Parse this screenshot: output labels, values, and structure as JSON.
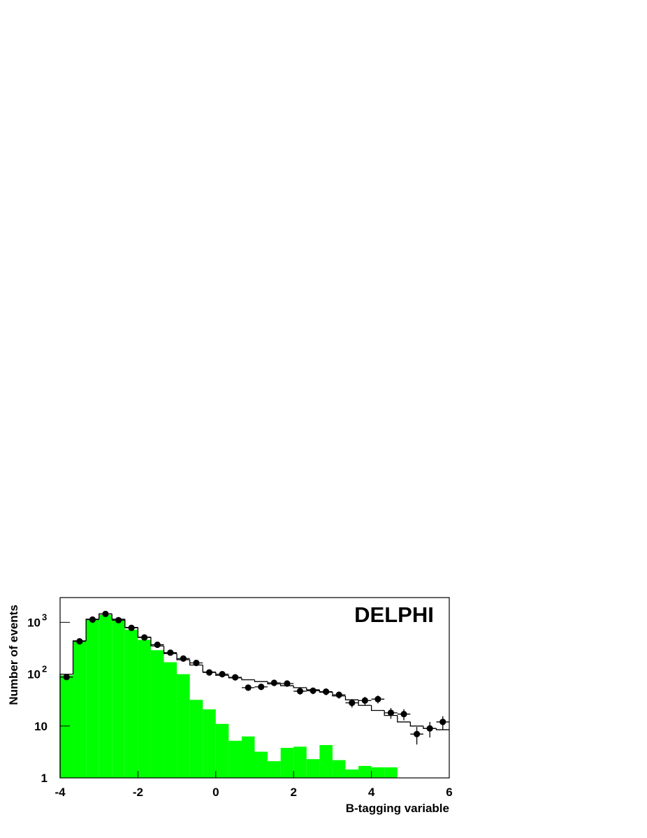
{
  "chart_data": {
    "type": "histogram",
    "annotation": "DELPHI",
    "xlabel": "B-tagging variable",
    "ylabel": "Number of events",
    "bins": [
      -4,
      -3.667,
      -3.333,
      -3,
      -2.667,
      -2.333,
      -2,
      -1.667,
      -1.333,
      -1,
      -0.667,
      -0.333,
      0,
      0.333,
      0.667,
      1,
      1.333,
      1.667,
      2,
      2.333,
      2.667,
      3,
      3.333,
      3.667,
      4,
      4.333,
      4.667,
      5,
      5.333,
      5.667,
      6
    ],
    "series": [
      {
        "color": "#00ff00",
        "style": "filled",
        "values": [
          95,
          440,
          1130,
          1380,
          1100,
          720,
          460,
          290,
          170,
          100,
          32,
          21,
          11,
          5.2,
          6.3,
          3.2,
          2.1,
          3.8,
          4.0,
          2.3,
          4.3,
          2.2,
          1.45,
          1.7,
          1.6,
          1.6,
          null,
          null,
          null,
          null
        ]
      },
      {
        "color": "#000000",
        "style": "step",
        "values": [
          100,
          440,
          1150,
          1450,
          1150,
          800,
          520,
          350,
          250,
          190,
          150,
          110,
          95,
          85,
          78,
          72,
          65,
          60,
          55,
          50,
          45,
          38,
          32,
          25,
          20,
          16,
          12,
          10,
          9,
          8.5
        ]
      }
    ],
    "data_points": {
      "color": "#000000",
      "values": [
        88,
        430,
        1130,
        1450,
        1100,
        780,
        510,
        370,
        260,
        200,
        165,
        108,
        100,
        87,
        55,
        57,
        68,
        66,
        47,
        48,
        46,
        40,
        28,
        31,
        33,
        18,
        17,
        7,
        9,
        12
      ],
      "errors": [
        9.4,
        21,
        34,
        38,
        33,
        28,
        23,
        19,
        16,
        14,
        13,
        10,
        10,
        9.3,
        7.4,
        7.5,
        8.2,
        8.1,
        6.9,
        6.9,
        6.8,
        6.3,
        5.3,
        5.6,
        5.7,
        4.2,
        4.1,
        2.6,
        3,
        3.5
      ]
    },
    "xlim": [
      -4,
      6
    ],
    "xticks": [
      -4,
      -2,
      0,
      2,
      4,
      6
    ],
    "ylim": [
      1,
      3000
    ],
    "yscale": "log",
    "yticks": [
      1,
      10,
      {
        "value": 100,
        "label": "10",
        "sup": "2"
      },
      {
        "value": 1000,
        "label": "10",
        "sup": "3"
      }
    ]
  }
}
